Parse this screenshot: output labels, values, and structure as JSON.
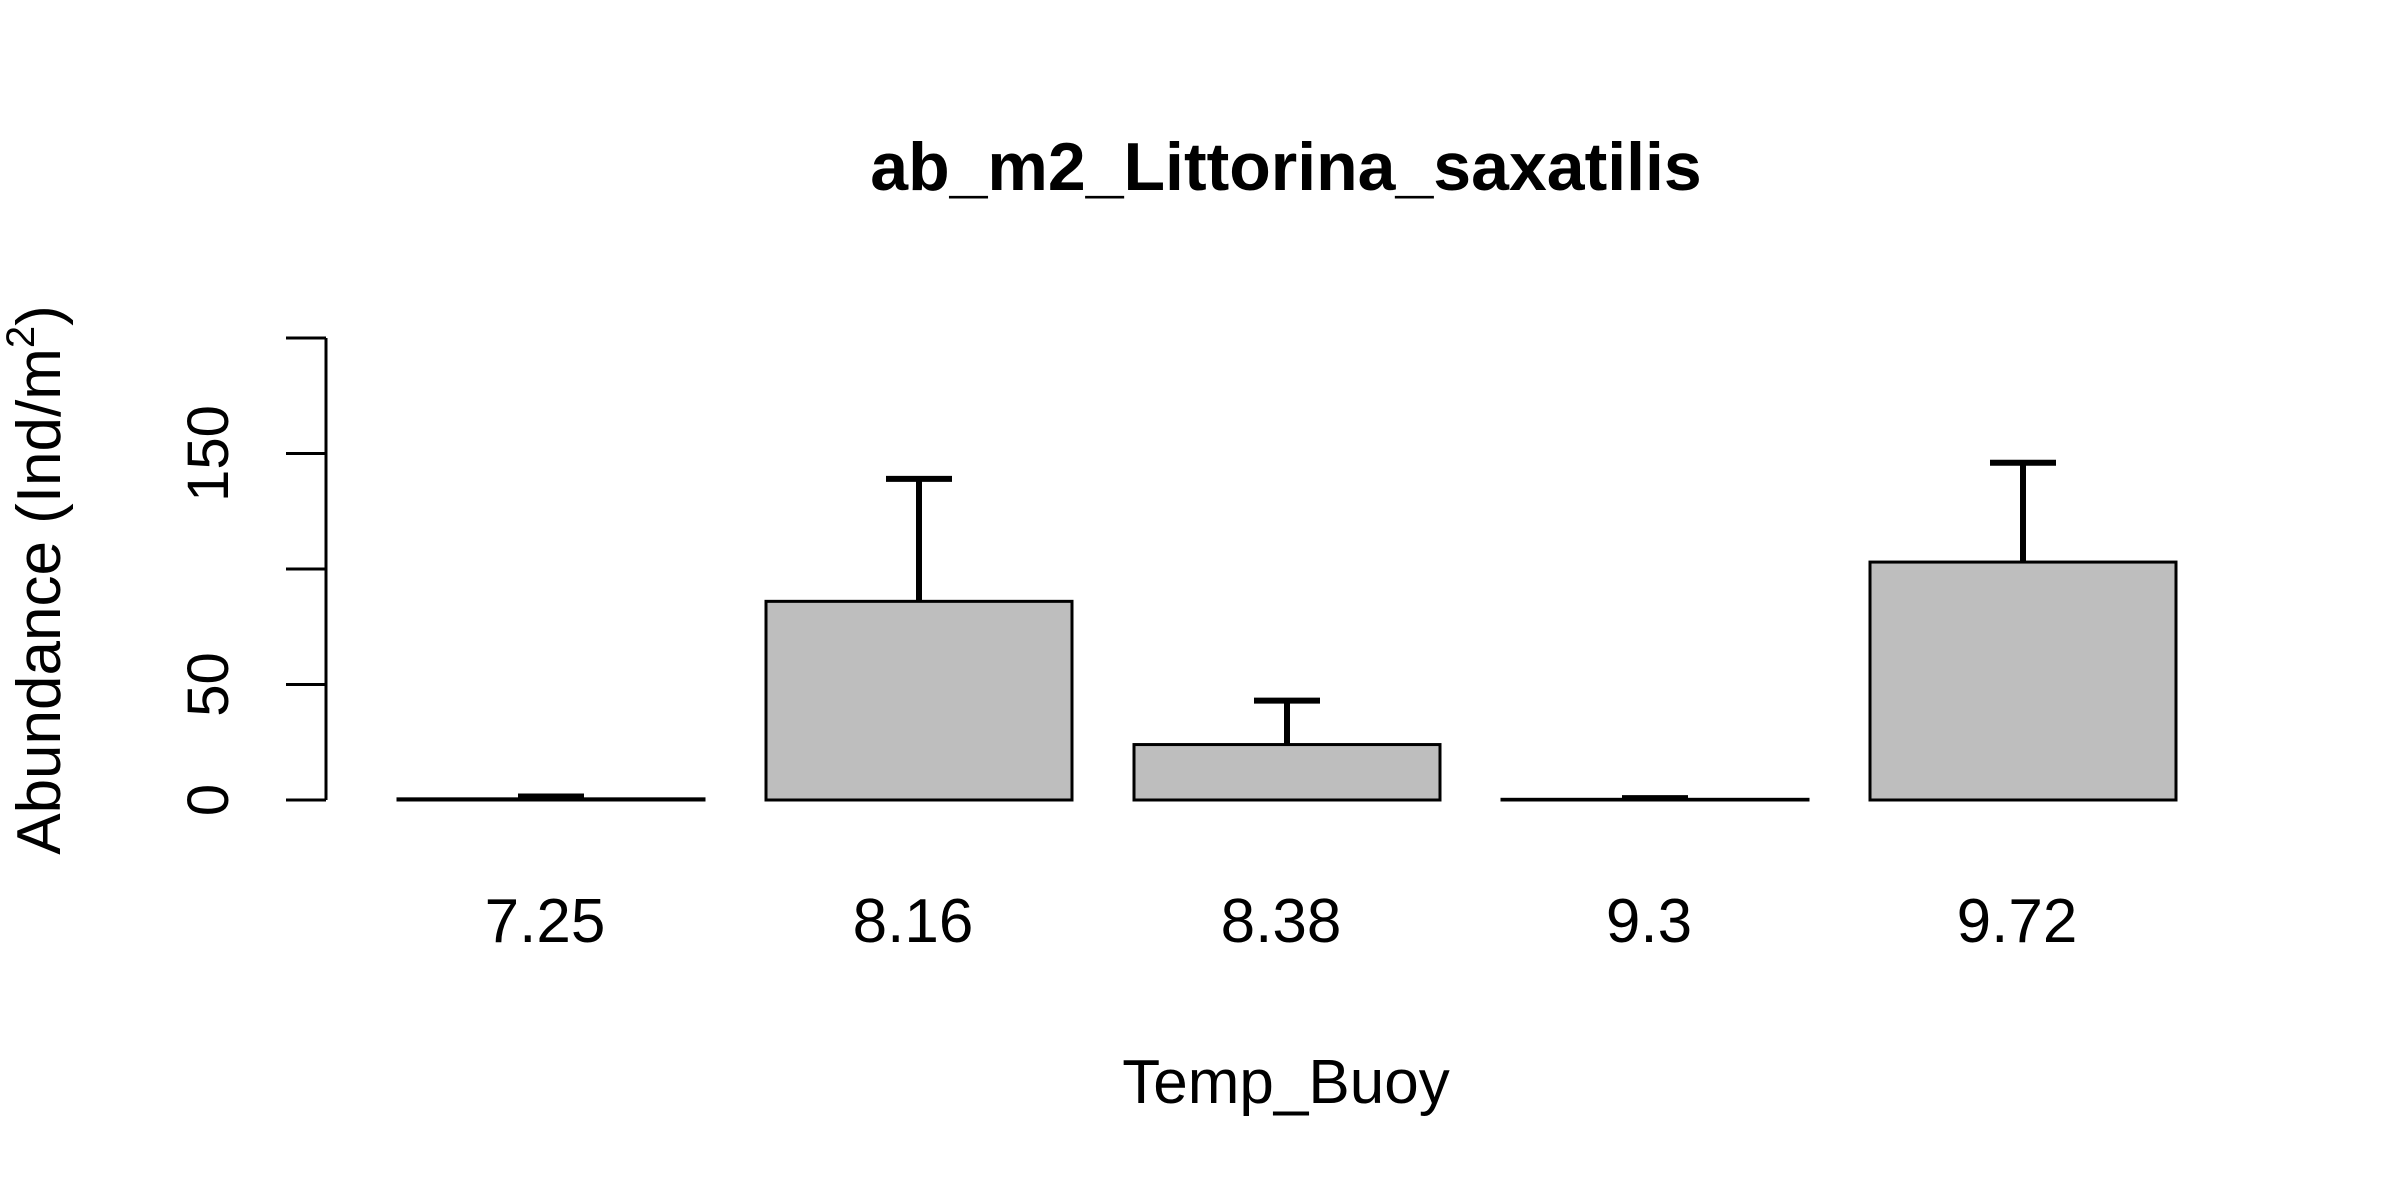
{
  "chart_data": {
    "type": "bar",
    "title": "ab_m2_Littorina_saxatilis",
    "xlabel": "Temp_Buoy",
    "ylabel": "Abundance (Ind/m",
    "ylabel_superscript": "2",
    "ylabel_suffix": ")",
    "categories": [
      "7.25",
      "8.16",
      "8.38",
      "9.3",
      "9.72"
    ],
    "values": [
      0.5,
      86,
      24,
      0.3,
      103
    ],
    "error_upper": [
      1.5,
      139,
      43,
      0.8,
      146
    ],
    "ylim": [
      0,
      200
    ],
    "yticks": [
      0,
      50,
      100,
      150,
      200
    ],
    "ytick_labels": [
      "0",
      "50",
      "",
      "150",
      ""
    ],
    "grid": false,
    "legend": "none",
    "colors": {
      "bar_fill": "#bebebe",
      "bar_stroke": "#000000",
      "error_bar": "#000000"
    }
  }
}
